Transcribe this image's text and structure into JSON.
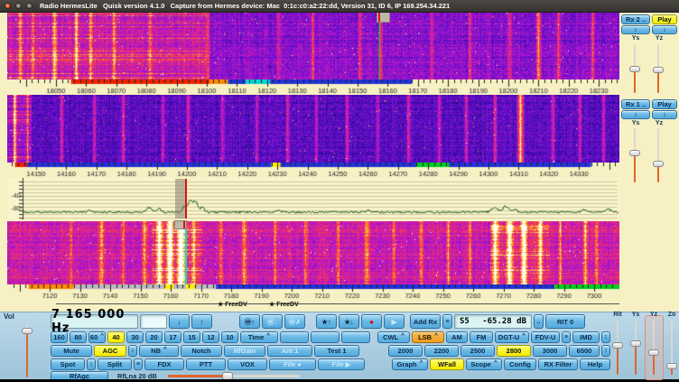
{
  "window": {
    "title": "Radio HermesLite   Quisk version 4.1.0   Capture from Hermes device: Mac  0:1c:c0:a2:22:dd, Version 31, ID 6, IP 169.254.34.221"
  },
  "rx2_panel": {
    "rx_button": {
      "name": "rx2-button",
      "label": "Rx 2 .."
    },
    "play_button": {
      "name": "rx2-play-button",
      "label": "Play",
      "state": "active"
    },
    "spin_buttons": [
      {
        "name": "rx2-ys-spin-button",
        "label": "↕",
        "small": true
      },
      {
        "name": "rx2-yz-spin-button",
        "label": "↕",
        "small": true
      }
    ],
    "y_labels": [
      "Ys",
      "Yz"
    ]
  },
  "rx1_panel": {
    "rx_button": {
      "name": "rx1-button",
      "label": "Rx 1 .."
    },
    "play_button": {
      "name": "rx1-play-button",
      "label": "Play"
    },
    "spin_buttons": [
      {
        "name": "rx1-ys-spin-button",
        "label": "↕",
        "small": true
      },
      {
        "name": "rx1-yz-spin-button",
        "label": "↕",
        "small": true
      }
    ],
    "y_labels": [
      "Ys",
      "Yz"
    ]
  },
  "right_sliders": {
    "labels": [
      "Rit",
      "Ys",
      "Yz",
      "Zo"
    ]
  },
  "graph": {
    "y_tick_labels": [
      "-40",
      "-80"
    ]
  },
  "stations": [
    {
      "symbol": "★",
      "label": "FreeDV"
    },
    {
      "symbol": "★",
      "label": "FreeDV"
    }
  ],
  "scales": {
    "wf1_ticks": [
      18050,
      18060,
      18070,
      18080,
      18090,
      18100,
      18110,
      18120,
      18130,
      18140,
      18150,
      18160,
      18170,
      18180,
      18190,
      18200,
      18210,
      18220,
      18230
    ],
    "wf2_ticks": [
      14150,
      14160,
      14170,
      14180,
      14190,
      14200,
      14210,
      14220,
      14230,
      14240,
      14250,
      14260,
      14270,
      14280,
      14290,
      14300,
      14310,
      14320,
      14330
    ],
    "wf3_ticks": [
      7120,
      7130,
      7140,
      7150,
      7160,
      7170,
      7180,
      7190,
      7200,
      7210,
      7220,
      7230,
      7240,
      7250,
      7260,
      7270,
      7280,
      7290,
      7300
    ],
    "wf1_segments": [
      [
        18055,
        18101,
        "#ee2200"
      ],
      [
        18101,
        18107,
        "#ff8800"
      ],
      [
        18107,
        18113,
        "#2233dd"
      ],
      [
        18113,
        18121,
        "#00d5d5"
      ],
      [
        18121,
        18168,
        "#2233dd"
      ]
    ],
    "wf2_segments": [
      [
        14143,
        14147,
        "#ee2200"
      ],
      [
        14147,
        14334,
        "#2233dd"
      ],
      [
        14276,
        14287,
        "#00cc22"
      ],
      [
        14228,
        14231,
        "#ffee00"
      ]
    ],
    "wf3_segments": [
      [
        7113,
        7128,
        "#ff8800"
      ],
      [
        7128,
        7175,
        "#b9b9c2"
      ],
      [
        7175,
        7287,
        "#2233dd"
      ],
      [
        7287,
        7313,
        "#00cc22"
      ],
      [
        7158,
        7161,
        "#ffee00"
      ],
      [
        7165,
        7168,
        "#ffee00"
      ]
    ]
  },
  "controls": {
    "menu_indicator": "^",
    "vol_label": "Vol",
    "frequency_display": "7 165 000 Hz",
    "frequency_entry": "",
    "smeter": {
      "s": "S5",
      "db": "-65.28 dB"
    },
    "row1": [
      {
        "name": "step-down-button",
        "label": "↓"
      },
      {
        "name": "step-up-button",
        "label": "↑"
      },
      {
        "name": "memory-save-button",
        "label": "Ⓜ↑"
      },
      {
        "name": "memory-next-button",
        "label": "Ⓜ↓",
        "state": "disabled"
      },
      {
        "name": "memory-delete-button",
        "label": "Ⓜ✗",
        "state": "disabled"
      },
      {
        "name": "favorite-add-button",
        "label": "★↑"
      },
      {
        "name": "favorite-show-button",
        "label": "★↓"
      },
      {
        "name": "record-button",
        "label": "●",
        "state": "record"
      },
      {
        "name": "playback-button",
        "label": "▶",
        "state": "disabled"
      },
      {
        "name": "add-rx-button",
        "label": "Add Rx"
      },
      {
        "name": "rx-list-button",
        "label": "≡",
        "small": true
      },
      {
        "name": "smeter-menu-button",
        "label": "..",
        "small": true
      },
      {
        "name": "rit-button",
        "label": "RIT 0"
      }
    ],
    "row2_left": [
      {
        "name": "band-160-button",
        "label": "160"
      },
      {
        "name": "band-80-button",
        "label": "80"
      },
      {
        "name": "band-60-button",
        "label": "60",
        "menu": true
      },
      {
        "name": "band-40-button",
        "label": "40",
        "state": "active"
      },
      {
        "name": "band-30-button",
        "label": "30"
      },
      {
        "name": "band-20-button",
        "label": "20"
      },
      {
        "name": "band-17-button",
        "label": "17"
      },
      {
        "name": "band-15-button",
        "label": "15"
      },
      {
        "name": "band-12-button",
        "label": "12"
      },
      {
        "name": "band-10-button",
        "label": "10"
      },
      {
        "name": "band-time-button",
        "label": "Time",
        "menu": true
      },
      {
        "name": "band-blank-button",
        "label": ""
      },
      {
        "name": "band-blank-button",
        "label": ""
      },
      {
        "name": "band-blank-button",
        "label": ""
      }
    ],
    "row2_right": [
      {
        "name": "mode-cwl-button",
        "label": "CWL",
        "menu": true
      },
      {
        "name": "mode-lsb-button",
        "label": "LSB",
        "menu": true,
        "state": "active-orange"
      },
      {
        "name": "mode-am-button",
        "label": "AM"
      },
      {
        "name": "mode-fm-button",
        "label": "FM"
      },
      {
        "name": "mode-dgt-u-button",
        "label": "DGT-U",
        "menu": true
      },
      {
        "name": "mode-fdv-u-button",
        "label": "FDV-U"
      },
      {
        "name": "fdv-list-button",
        "label": "≡",
        "small": true
      },
      {
        "name": "mode-imd-button",
        "label": "IMD"
      },
      {
        "name": "imd-spin-button",
        "label": "↕",
        "small": true
      }
    ],
    "row3_left": [
      {
        "name": "mute-button",
        "label": "Mute"
      },
      {
        "name": "agc-button",
        "label": "AGC",
        "state": "active"
      },
      {
        "name": "agc-spin-button",
        "label": "↕",
        "small": true
      },
      {
        "name": "nb-button",
        "label": "NB",
        "menu": true
      },
      {
        "name": "notch-button",
        "label": "Notch"
      },
      {
        "name": "rfgain-button",
        "label": "RfGain",
        "state": "disabled"
      },
      {
        "name": "ant-1-button",
        "label": "Ant 1",
        "state": "disabled"
      },
      {
        "name": "test-1-button",
        "label": "Test 1"
      }
    ],
    "row3_right": [
      {
        "name": "filter-2000-button",
        "label": "2000"
      },
      {
        "name": "filter-2200-button",
        "label": "2200"
      },
      {
        "name": "filter-2500-button",
        "label": "2500"
      },
      {
        "name": "filter-2800-button",
        "label": "2800",
        "state": "active"
      },
      {
        "name": "filter-3000-button",
        "label": "3000"
      },
      {
        "name": "filter-6500-button",
        "label": "6500"
      },
      {
        "name": "filter-spin-button",
        "label": "↕",
        "small": true
      }
    ],
    "row4_left": [
      {
        "name": "spot-button",
        "label": "Spot"
      },
      {
        "name": "spot-spin-button",
        "label": "↕",
        "small": true
      },
      {
        "name": "split-button",
        "label": "Split"
      },
      {
        "name": "split-list-button",
        "label": "≡",
        "small": true
      },
      {
        "name": "fdx-button",
        "label": "FDX"
      },
      {
        "name": "ptt-button",
        "label": "PTT"
      },
      {
        "name": "vox-button",
        "label": "VOX"
      },
      {
        "name": "file-record-button",
        "label": "File ●",
        "state": "disabled"
      },
      {
        "name": "file-play-button",
        "label": "File ▶",
        "state": "disabled"
      }
    ],
    "row4_right": [
      {
        "name": "graph-button",
        "label": "Graph",
        "menu": true
      },
      {
        "name": "wfall-button",
        "label": "WFall",
        "state": "active"
      },
      {
        "name": "scope-button",
        "label": "Scope",
        "menu": true
      },
      {
        "name": "config-button",
        "label": "Config"
      },
      {
        "name": "rx-filter-button",
        "label": "RX Filter"
      },
      {
        "name": "help-button",
        "label": "Help"
      }
    ],
    "rfagc": {
      "name": "rfagc-button",
      "label": "RfAgc"
    },
    "rflna_label": "RfLna 20 dB"
  },
  "colors": {
    "active": "#f2ea00",
    "active_mode": "#ee9b20",
    "record_dot": "#dd0000",
    "slider_fill": "#e0652e"
  }
}
